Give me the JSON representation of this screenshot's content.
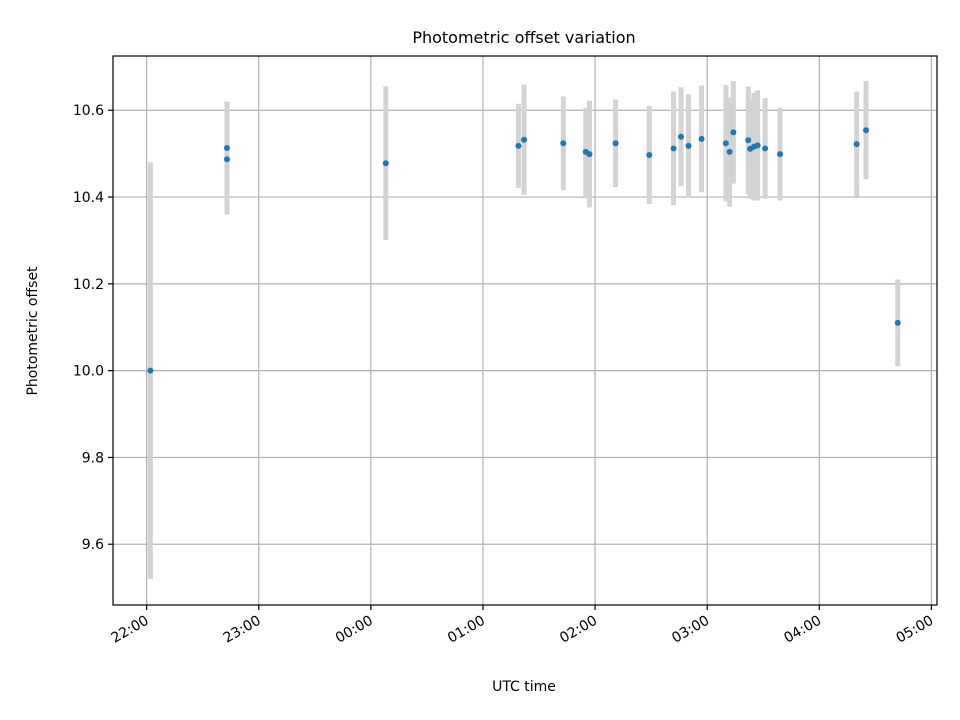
{
  "chart_data": {
    "type": "scatter",
    "title": "Photometric offset variation",
    "xlabel": "UTC time",
    "ylabel": "Photometric offset",
    "x_axis": {
      "kind": "time",
      "range": [
        "21:42",
        "05:03"
      ],
      "ticks": [
        "22:00",
        "23:00",
        "00:00",
        "01:00",
        "02:00",
        "03:00",
        "04:00",
        "05:00"
      ]
    },
    "ylim": [
      9.46,
      10.725
    ],
    "yticks": [
      9.6,
      9.8,
      10.0,
      10.2,
      10.4,
      10.6
    ],
    "ytick_labels": [
      "9.6",
      "9.8",
      "10.0",
      "10.2",
      "10.4",
      "10.6"
    ],
    "grid": true,
    "colors": {
      "points": "#1f77b4",
      "errorbars": "#d3d3d3",
      "grid": "#b0b0b0"
    },
    "points": [
      {
        "x": "22:02",
        "y": 10.0,
        "err": 0.48
      },
      {
        "x": "22:43",
        "y": 10.487,
        "err": 0.127
      },
      {
        "x": "22:43",
        "y": 10.513,
        "err": 0.107
      },
      {
        "x": "00:08",
        "y": 10.478,
        "err": 0.177
      },
      {
        "x": "01:19",
        "y": 10.518,
        "err": 0.097
      },
      {
        "x": "01:22",
        "y": 10.532,
        "err": 0.127
      },
      {
        "x": "01:43",
        "y": 10.524,
        "err": 0.108
      },
      {
        "x": "01:55",
        "y": 10.504,
        "err": 0.101
      },
      {
        "x": "01:57",
        "y": 10.499,
        "err": 0.123
      },
      {
        "x": "02:11",
        "y": 10.524,
        "err": 0.101
      },
      {
        "x": "02:29",
        "y": 10.497,
        "err": 0.113
      },
      {
        "x": "02:42",
        "y": 10.512,
        "err": 0.131
      },
      {
        "x": "02:46",
        "y": 10.539,
        "err": 0.114
      },
      {
        "x": "02:50",
        "y": 10.518,
        "err": 0.119
      },
      {
        "x": "02:57",
        "y": 10.534,
        "err": 0.123
      },
      {
        "x": "03:10",
        "y": 10.524,
        "err": 0.134
      },
      {
        "x": "03:12",
        "y": 10.504,
        "err": 0.126
      },
      {
        "x": "03:14",
        "y": 10.549,
        "err": 0.118
      },
      {
        "x": "03:22",
        "y": 10.531,
        "err": 0.124
      },
      {
        "x": "03:23",
        "y": 10.511,
        "err": 0.115
      },
      {
        "x": "03:25",
        "y": 10.516,
        "err": 0.124
      },
      {
        "x": "03:27",
        "y": 10.519,
        "err": 0.127
      },
      {
        "x": "03:31",
        "y": 10.512,
        "err": 0.116
      },
      {
        "x": "03:39",
        "y": 10.499,
        "err": 0.107
      },
      {
        "x": "04:20",
        "y": 10.522,
        "err": 0.121
      },
      {
        "x": "04:25",
        "y": 10.554,
        "err": 0.113
      },
      {
        "x": "04:42",
        "y": 10.11,
        "err": 0.1
      }
    ]
  }
}
